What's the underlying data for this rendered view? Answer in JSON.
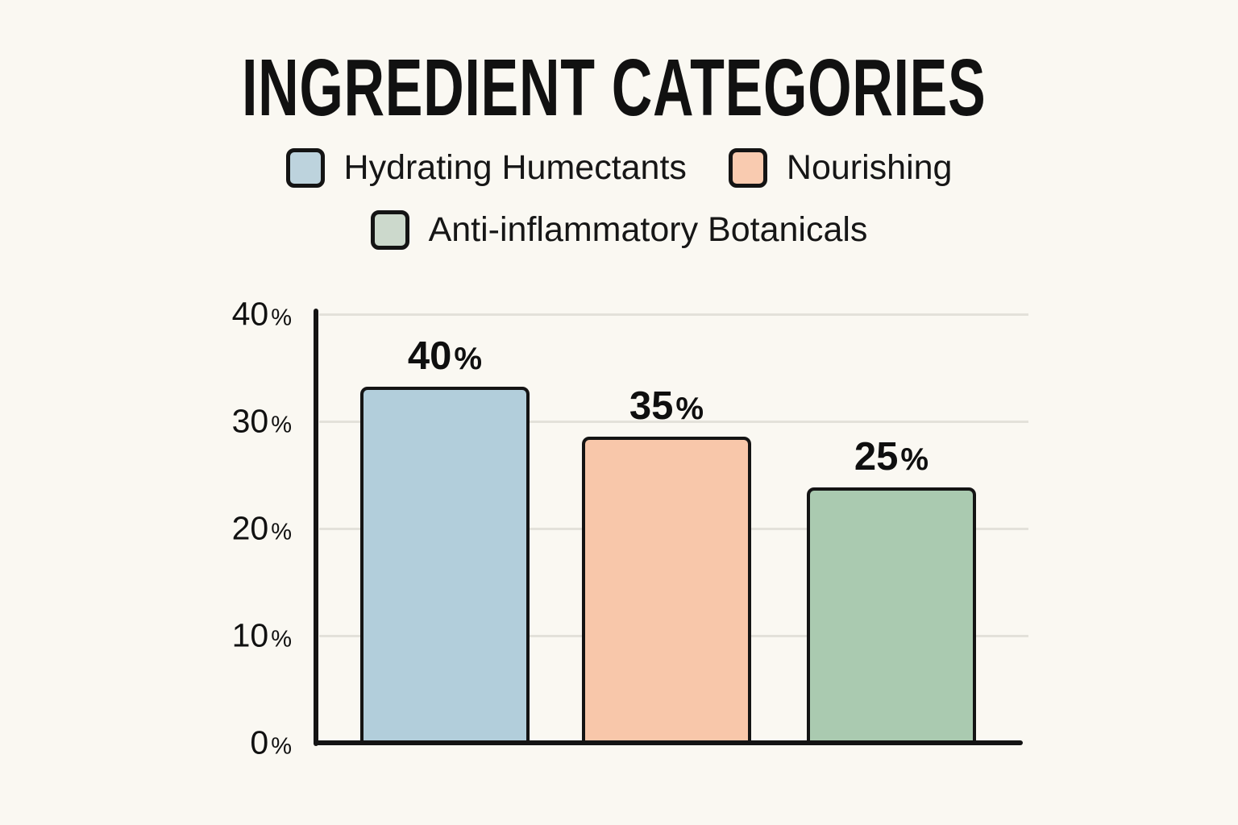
{
  "title": "INGREDIENT CATEGORIES",
  "legend": {
    "items": [
      {
        "label": "Hydrating Humectants",
        "color": "#bdd3dd"
      },
      {
        "label": "Nourishing",
        "color": "#f9cbb0"
      },
      {
        "label": "Anti-inflammatory Botanicals",
        "color": "#ccd9cc"
      }
    ]
  },
  "chart_data": {
    "type": "bar",
    "title": "INGREDIENT CATEGORIES",
    "categories": [
      "Hydrating Humectants",
      "Nourishing",
      "Anti-inflammatory Botanicals"
    ],
    "values": [
      40,
      35,
      25
    ],
    "data_labels": [
      "40%",
      "35%",
      "25%"
    ],
    "bar_colors": [
      "#b2cedb",
      "#f8c7aa",
      "#aacab0"
    ],
    "bar_border_color": "#141414",
    "xlabel": "",
    "ylabel": "",
    "ylim": [
      0,
      40
    ],
    "ytick_values": [
      40,
      30,
      20,
      10,
      0
    ],
    "ytick_labels": [
      "40%",
      "30%",
      "20%",
      "10%",
      "0%"
    ],
    "grid": true,
    "legend_position": "top",
    "background_color": "#faf8f2",
    "drawn_bar_heights_pct": [
      33.2,
      28.6,
      23.8
    ]
  }
}
